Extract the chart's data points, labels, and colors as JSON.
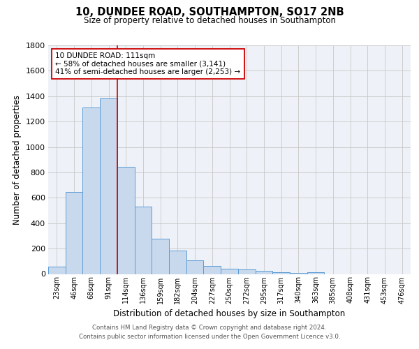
{
  "title": "10, DUNDEE ROAD, SOUTHAMPTON, SO17 2NB",
  "subtitle": "Size of property relative to detached houses in Southampton",
  "xlabel": "Distribution of detached houses by size in Southampton",
  "ylabel": "Number of detached properties",
  "bar_labels": [
    "23sqm",
    "46sqm",
    "68sqm",
    "91sqm",
    "114sqm",
    "136sqm",
    "159sqm",
    "182sqm",
    "204sqm",
    "227sqm",
    "250sqm",
    "272sqm",
    "295sqm",
    "317sqm",
    "340sqm",
    "363sqm",
    "385sqm",
    "408sqm",
    "431sqm",
    "453sqm",
    "476sqm"
  ],
  "bar_values": [
    55,
    645,
    1310,
    1380,
    845,
    530,
    275,
    185,
    105,
    65,
    40,
    35,
    25,
    15,
    8,
    13,
    0,
    0,
    0,
    0,
    0
  ],
  "bar_color": "#c9d9ed",
  "bar_edge_color": "#5b9bd5",
  "ylim": [
    0,
    1800
  ],
  "yticks": [
    0,
    200,
    400,
    600,
    800,
    1000,
    1200,
    1400,
    1600,
    1800
  ],
  "vline_x_index": 4,
  "vline_color": "#cc0000",
  "annotation_text": "10 DUNDEE ROAD: 111sqm\n← 58% of detached houses are smaller (3,141)\n41% of semi-detached houses are larger (2,253) →",
  "annotation_box_color": "#ffffff",
  "annotation_box_edge": "#cc0000",
  "footer1": "Contains HM Land Registry data © Crown copyright and database right 2024.",
  "footer2": "Contains public sector information licensed under the Open Government Licence v3.0.",
  "bg_color": "#eef2f8",
  "grid_color": "#c8c8c8",
  "fig_bg_color": "#ffffff"
}
